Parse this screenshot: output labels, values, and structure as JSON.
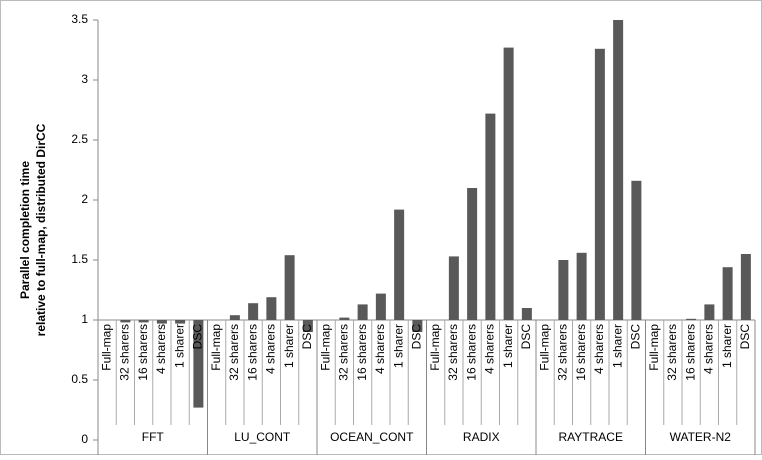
{
  "chart_data": {
    "type": "bar",
    "ylabel": [
      "Parallel completion time",
      "relative to full-map, distributed DirCC"
    ],
    "categories": [
      "FFT",
      "LU_CONT",
      "OCEAN_CONT",
      "RADIX",
      "RAYTRACE",
      "WATER-N2"
    ],
    "series": [
      {
        "name": "Full-map",
        "color": "#595959",
        "values": [
          1,
          1,
          1,
          1,
          1,
          1
        ]
      },
      {
        "name": "32 sharers",
        "color": "#595959",
        "values": [
          0.98,
          1.04,
          1.02,
          1.53,
          1.5,
          1.0
        ]
      },
      {
        "name": "16 sharers",
        "color": "#595959",
        "values": [
          0.98,
          1.14,
          1.13,
          2.1,
          1.56,
          1.01
        ]
      },
      {
        "name": "4 sharers",
        "color": "#595959",
        "values": [
          0.97,
          1.19,
          1.22,
          2.72,
          3.26,
          1.13
        ]
      },
      {
        "name": "1 sharer",
        "color": "#595959",
        "values": [
          0.97,
          1.54,
          1.92,
          3.27,
          3.5,
          1.44
        ]
      },
      {
        "name": "DSC",
        "color": "#595959",
        "values": [
          0.27,
          0.9,
          0.9,
          1.1,
          2.16,
          1.55
        ]
      }
    ],
    "baseline": 1,
    "ylim": [
      0,
      3.5
    ],
    "yticks": [
      0,
      0.5,
      1,
      1.5,
      2,
      2.5,
      3,
      3.5
    ]
  }
}
